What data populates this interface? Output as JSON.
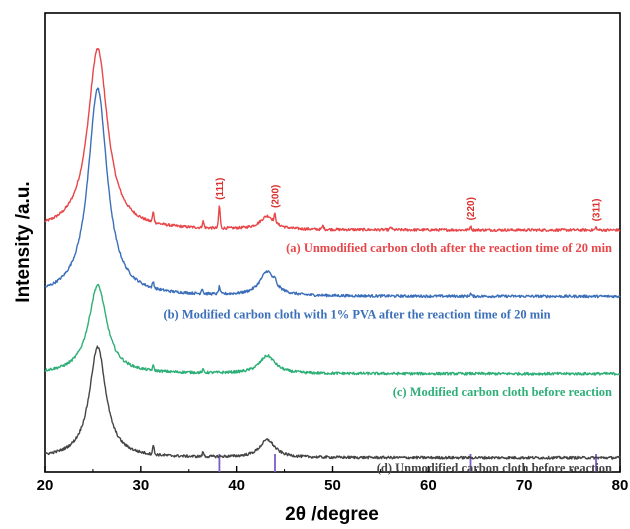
{
  "chart_data": {
    "type": "line",
    "xlabel": "2θ /degree",
    "ylabel": "Intensity /a.u.",
    "xlim": [
      20,
      80
    ],
    "xticks": [
      20,
      30,
      40,
      50,
      60,
      70,
      80
    ],
    "yticks": "none",
    "grid": false,
    "series": [
      {
        "name": "(a) Unmodified carbon cloth after the reaction time of 20 min",
        "color": "#e8474a",
        "offset": 0.52,
        "broad_peaks": [
          [
            25.5,
            0.41,
            1.25
          ],
          [
            43.2,
            0.03,
            0.9
          ]
        ],
        "sharp_peaks": [
          [
            31.3,
            0.022
          ],
          [
            36.5,
            0.014
          ],
          [
            38.2,
            0.05
          ],
          [
            44.0,
            0.018
          ],
          [
            49.0,
            0.008
          ],
          [
            56.1,
            0.006
          ],
          [
            64.4,
            0.008
          ],
          [
            77.5,
            0.006
          ]
        ]
      },
      {
        "name": "(b) Modified carbon cloth with 1% PVA after the reaction time of 20 min",
        "color": "#3b6fba",
        "offset": 0.37,
        "broad_peaks": [
          [
            25.5,
            0.47,
            1.2
          ],
          [
            43.2,
            0.055,
            0.95
          ]
        ],
        "sharp_peaks": [
          [
            31.3,
            0.014
          ],
          [
            36.4,
            0.012
          ],
          [
            38.2,
            0.016
          ],
          [
            44.0,
            0.01
          ],
          [
            64.4,
            0.006
          ]
        ]
      },
      {
        "name": "(c) Modified carbon cloth before reaction",
        "color": "#2faf78",
        "offset": 0.195,
        "broad_peaks": [
          [
            25.5,
            0.2,
            1.15
          ],
          [
            43.2,
            0.04,
            1.0
          ]
        ],
        "sharp_peaks": [
          [
            31.3,
            0.01
          ],
          [
            36.5,
            0.006
          ]
        ]
      },
      {
        "name": "(d) Unmodified carbon cloth before reaction",
        "color": "#454545",
        "offset": 0.005,
        "broad_peaks": [
          [
            25.5,
            0.25,
            1.05
          ],
          [
            43.2,
            0.04,
            0.95
          ]
        ],
        "sharp_peaks": [
          [
            31.3,
            0.02
          ],
          [
            36.5,
            0.01
          ]
        ]
      }
    ],
    "peak_labels": [
      {
        "text": "(111)",
        "x": 38.2
      },
      {
        "text": "(200)",
        "x": 44.0
      },
      {
        "text": "(220)",
        "x": 64.4
      },
      {
        "text": "(311)",
        "x": 77.5
      }
    ],
    "reference_lines": {
      "color": "#7b5cc8",
      "x": [
        38.2,
        44.0,
        64.4,
        77.5
      ]
    }
  }
}
